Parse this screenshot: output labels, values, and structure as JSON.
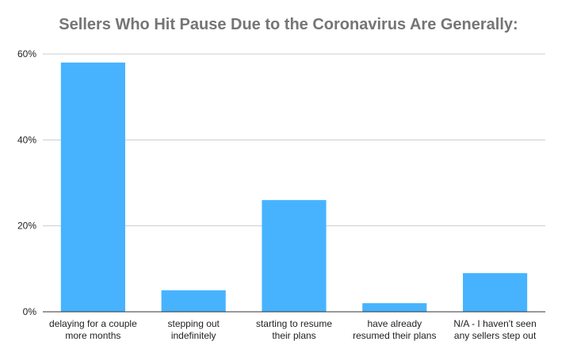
{
  "chart_data": {
    "type": "bar",
    "title": "Sellers Who Hit Pause Due to the Coronavirus Are Generally:",
    "xlabel": "",
    "ylabel": "",
    "categories": [
      [
        "delaying for a couple",
        "more months"
      ],
      [
        "stepping out",
        "indefinitely"
      ],
      [
        "starting to resume",
        "their plans"
      ],
      [
        "have already",
        "resumed their plans"
      ],
      [
        "N/A - I haven't seen",
        "any sellers step out"
      ]
    ],
    "values": [
      58,
      5,
      26,
      2,
      9
    ],
    "ylim": [
      0,
      60
    ],
    "yticks": [
      0,
      20,
      40,
      60
    ],
    "ytick_labels": [
      "0%",
      "20%",
      "40%",
      "60%"
    ],
    "grid": true,
    "legend": "none",
    "bar_color": "#47b3ff",
    "grid_color": "#cccccc",
    "axis_color": "#333333"
  }
}
